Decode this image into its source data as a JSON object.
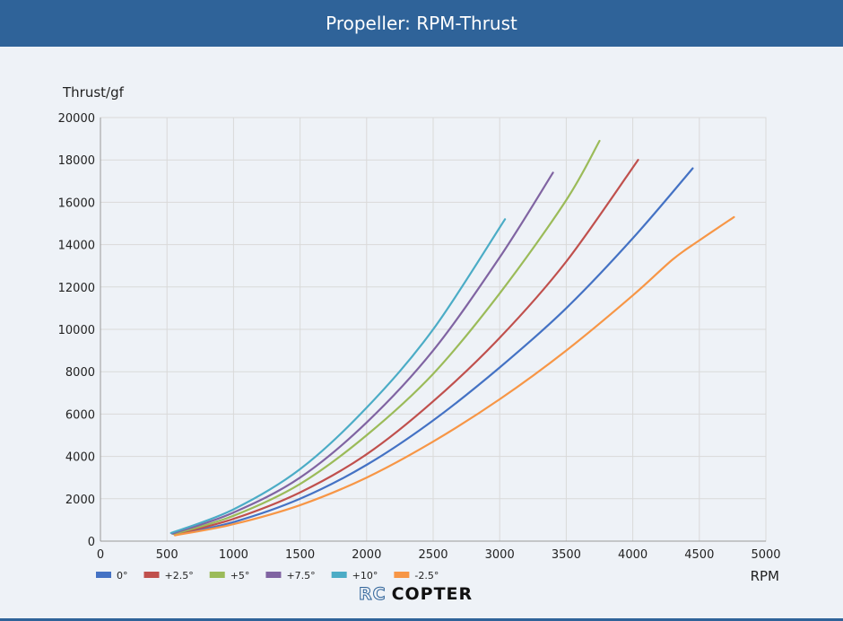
{
  "header": {
    "title": "Propeller: RPM-Thrust"
  },
  "logo": {
    "rc": "RC",
    "copter": "COPTER"
  },
  "colors": {
    "header_bg": "#2f6399",
    "grid": "#d9d9d9"
  },
  "chart_data": {
    "type": "line",
    "ylabel": "Thrust/gf",
    "xlabel": "RPM",
    "xlim": [
      0,
      5000
    ],
    "ylim": [
      0,
      20000
    ],
    "xticks": [
      0,
      500,
      1000,
      1500,
      2000,
      2500,
      3000,
      3500,
      4000,
      4500,
      5000
    ],
    "yticks": [
      0,
      2000,
      4000,
      6000,
      8000,
      10000,
      12000,
      14000,
      16000,
      18000,
      20000
    ],
    "grid": true,
    "legend_position": "bottom-left",
    "series": [
      {
        "name": "0°",
        "color": "#4472c4",
        "x": [
          560,
          1000,
          1500,
          2000,
          2500,
          3000,
          3500,
          4000,
          4450
        ],
        "y": [
          300,
          900,
          2000,
          3600,
          5700,
          8200,
          11000,
          14300,
          17600
        ]
      },
      {
        "name": "+2.5°",
        "color": "#c0504d",
        "x": [
          560,
          1000,
          1500,
          2000,
          2500,
          3000,
          3500,
          4040
        ],
        "y": [
          320,
          1050,
          2300,
          4100,
          6600,
          9600,
          13200,
          18000
        ]
      },
      {
        "name": "+5°",
        "color": "#9bbb59",
        "x": [
          550,
          1000,
          1500,
          2000,
          2500,
          3000,
          3500,
          3750
        ],
        "y": [
          330,
          1200,
          2700,
          5000,
          7900,
          11700,
          16100,
          18900
        ]
      },
      {
        "name": "+7.5°",
        "color": "#8064a2",
        "x": [
          540,
          1000,
          1500,
          2000,
          2500,
          3000,
          3400
        ],
        "y": [
          350,
          1350,
          3000,
          5600,
          9000,
          13400,
          17400
        ]
      },
      {
        "name": "+10°",
        "color": "#4bacc6",
        "x": [
          530,
          1000,
          1500,
          2000,
          2500,
          3040
        ],
        "y": [
          380,
          1500,
          3400,
          6300,
          10000,
          15200
        ]
      },
      {
        "name": "-2.5°",
        "color": "#f79646",
        "x": [
          560,
          1000,
          1500,
          2000,
          2500,
          3000,
          3500,
          4000,
          4300,
          4500,
          4760
        ],
        "y": [
          270,
          800,
          1700,
          3000,
          4700,
          6700,
          9000,
          11600,
          13300,
          14200,
          15300
        ]
      }
    ]
  }
}
